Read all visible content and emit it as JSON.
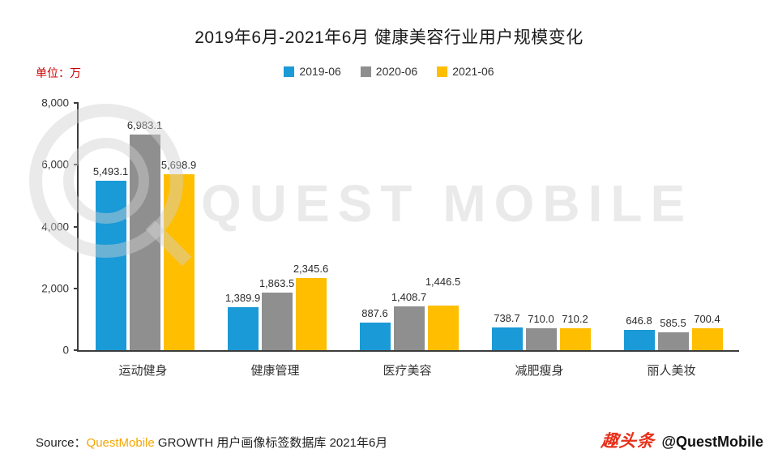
{
  "title": "2019年6月-2021年6月 健康美容行业用户规模变化",
  "unit_label": "单位：万",
  "chart_data": {
    "type": "bar",
    "title": "2019年6月-2021年6月 健康美容行业用户规模变化",
    "categories": [
      "运动健身",
      "健康管理",
      "医疗美容",
      "减肥瘦身",
      "丽人美妆"
    ],
    "series": [
      {
        "name": "2019-06",
        "color": "#1a9ad7",
        "values": [
          5493.1,
          1389.9,
          887.6,
          738.7,
          646.8
        ]
      },
      {
        "name": "2020-06",
        "color": "#8f8f8f",
        "values": [
          6983.1,
          1863.5,
          1408.7,
          710.0,
          585.5
        ]
      },
      {
        "name": "2021-06",
        "color": "#ffbe00",
        "values": [
          5698.9,
          2345.6,
          1446.5,
          710.2,
          700.4
        ]
      }
    ],
    "xlabel": "",
    "ylabel": "单位：万",
    "ylim": [
      0,
      8000
    ],
    "ytick_step": 2000,
    "grid": false,
    "legend_position": "top",
    "label_raise": [
      [
        0,
        0,
        0
      ],
      [
        0,
        0,
        0
      ],
      [
        0,
        0,
        18
      ],
      [
        0,
        0,
        0
      ],
      [
        0,
        0,
        0
      ]
    ]
  },
  "watermark": {
    "text": "QUEST MOBILE",
    "logo": "questmobile-ring-logo"
  },
  "source": {
    "prefix": "Source：",
    "brand": "QuestMobile",
    "rest": " GROWTH 用户画像标签数据库 2021年6月"
  },
  "footer": {
    "platform_logo": "趣头条",
    "handle": "@QuestMobile"
  }
}
